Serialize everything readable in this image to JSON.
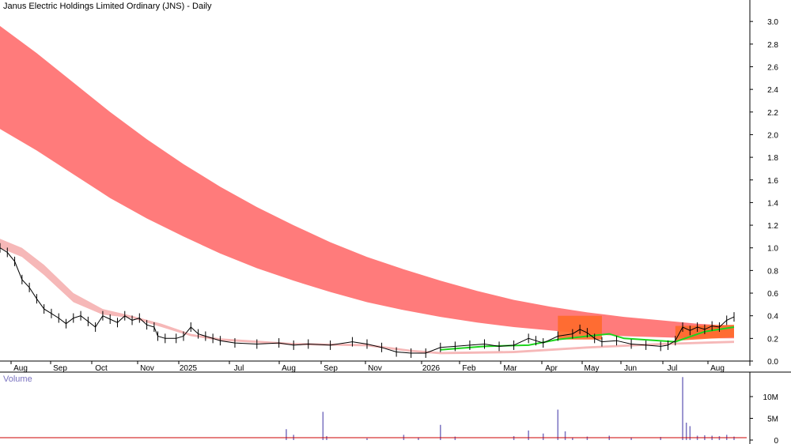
{
  "chart_title": "Janus Electric Holdings Limited Ordinary (JNS) - Daily",
  "volume_label": "Volume",
  "colors": {
    "upper_band": "#ff7b7b",
    "lower_band": "#f6b8b8",
    "highlight": "#ff6a2a",
    "short_ma": "#1ed41e",
    "price": "#000000",
    "volume_bars": "#7a72c0",
    "volume_ma": "#cc0000"
  },
  "chart_data": {
    "type": "line",
    "title": "Janus Electric Holdings Limited Ordinary (JNS) - Daily",
    "x_tick_labels": [
      "Aug",
      "Sep",
      "Oct",
      "Nov",
      "2025",
      "Jul",
      "Aug",
      "Sep",
      "Nov",
      "2026",
      "Feb",
      "Mar",
      "Apr",
      "May",
      "Jun",
      "Jul",
      "Aug"
    ],
    "price_axis": {
      "ticks": [
        "0.0",
        "0.2",
        "0.4",
        "0.6",
        "0.8",
        "1.0",
        "1.2",
        "1.4",
        "1.6",
        "1.8",
        "2.0",
        "2.2",
        "2.4",
        "2.6",
        "2.8",
        "3.0"
      ],
      "ylim": [
        0,
        3.05
      ]
    },
    "volume_axis": {
      "ticks": [
        "0",
        "5M",
        "10M"
      ],
      "ylim": [
        0,
        14000000
      ]
    },
    "grid": false,
    "series": [
      {
        "kind": "upper_band",
        "top": [
          [
            0,
            2.96
          ],
          [
            0.05,
            2.72
          ],
          [
            0.1,
            2.46
          ],
          [
            0.15,
            2.2
          ],
          [
            0.2,
            1.96
          ],
          [
            0.25,
            1.74
          ],
          [
            0.3,
            1.54
          ],
          [
            0.35,
            1.36
          ],
          [
            0.4,
            1.2
          ],
          [
            0.45,
            1.05
          ],
          [
            0.5,
            0.92
          ],
          [
            0.55,
            0.81
          ],
          [
            0.6,
            0.71
          ],
          [
            0.65,
            0.62
          ],
          [
            0.7,
            0.54
          ],
          [
            0.75,
            0.48
          ],
          [
            0.8,
            0.43
          ],
          [
            0.85,
            0.39
          ],
          [
            0.9,
            0.36
          ],
          [
            0.95,
            0.33
          ],
          [
            1,
            0.31
          ]
        ],
        "bottom": [
          [
            0,
            2.05
          ],
          [
            0.05,
            1.86
          ],
          [
            0.1,
            1.65
          ],
          [
            0.15,
            1.44
          ],
          [
            0.2,
            1.26
          ],
          [
            0.25,
            1.1
          ],
          [
            0.3,
            0.95
          ],
          [
            0.35,
            0.82
          ],
          [
            0.4,
            0.71
          ],
          [
            0.45,
            0.61
          ],
          [
            0.5,
            0.52
          ],
          [
            0.55,
            0.45
          ],
          [
            0.6,
            0.39
          ],
          [
            0.65,
            0.34
          ],
          [
            0.7,
            0.3
          ],
          [
            0.75,
            0.27
          ],
          [
            0.8,
            0.24
          ],
          [
            0.85,
            0.22
          ],
          [
            0.9,
            0.21
          ],
          [
            0.95,
            0.2
          ],
          [
            1,
            0.2
          ]
        ]
      },
      {
        "kind": "lower_band",
        "top": [
          [
            0,
            1.08
          ],
          [
            0.03,
            1.0
          ],
          [
            0.06,
            0.85
          ],
          [
            0.1,
            0.6
          ],
          [
            0.14,
            0.46
          ],
          [
            0.18,
            0.4
          ],
          [
            0.22,
            0.33
          ],
          [
            0.26,
            0.24
          ],
          [
            0.3,
            0.2
          ],
          [
            0.4,
            0.16
          ],
          [
            0.5,
            0.15
          ],
          [
            0.56,
            0.1
          ],
          [
            0.6,
            0.08
          ],
          [
            0.7,
            0.09
          ],
          [
            0.8,
            0.13
          ],
          [
            0.9,
            0.16
          ],
          [
            1,
            0.18
          ]
        ],
        "bottom": [
          [
            0,
            1.0
          ],
          [
            0.03,
            0.92
          ],
          [
            0.06,
            0.76
          ],
          [
            0.1,
            0.52
          ],
          [
            0.14,
            0.41
          ],
          [
            0.18,
            0.38
          ],
          [
            0.22,
            0.3
          ],
          [
            0.26,
            0.22
          ],
          [
            0.3,
            0.18
          ],
          [
            0.4,
            0.14
          ],
          [
            0.5,
            0.13
          ],
          [
            0.56,
            0.08
          ],
          [
            0.6,
            0.06
          ],
          [
            0.7,
            0.07
          ],
          [
            0.8,
            0.11
          ],
          [
            0.9,
            0.14
          ],
          [
            1,
            0.16
          ]
        ]
      },
      {
        "kind": "short_ma",
        "points": [
          [
            0.6,
            0.1
          ],
          [
            0.66,
            0.13
          ],
          [
            0.72,
            0.14
          ],
          [
            0.76,
            0.19
          ],
          [
            0.8,
            0.22
          ],
          [
            0.83,
            0.24
          ],
          [
            0.85,
            0.2
          ],
          [
            0.92,
            0.17
          ],
          [
            0.96,
            0.26
          ],
          [
            1,
            0.3
          ]
        ]
      },
      {
        "kind": "price",
        "points": [
          [
            0,
            1.0
          ],
          [
            0.01,
            0.96
          ],
          [
            0.02,
            0.88
          ],
          [
            0.03,
            0.72
          ],
          [
            0.04,
            0.65
          ],
          [
            0.05,
            0.55
          ],
          [
            0.06,
            0.46
          ],
          [
            0.07,
            0.42
          ],
          [
            0.08,
            0.38
          ],
          [
            0.09,
            0.33
          ],
          [
            0.1,
            0.38
          ],
          [
            0.11,
            0.4
          ],
          [
            0.12,
            0.35
          ],
          [
            0.13,
            0.3
          ],
          [
            0.14,
            0.4
          ],
          [
            0.15,
            0.37
          ],
          [
            0.16,
            0.34
          ],
          [
            0.17,
            0.4
          ],
          [
            0.18,
            0.36
          ],
          [
            0.19,
            0.38
          ],
          [
            0.2,
            0.32
          ],
          [
            0.21,
            0.3
          ],
          [
            0.215,
            0.22
          ],
          [
            0.225,
            0.2
          ],
          [
            0.24,
            0.2
          ],
          [
            0.25,
            0.22
          ],
          [
            0.26,
            0.3
          ],
          [
            0.27,
            0.24
          ],
          [
            0.28,
            0.22
          ],
          [
            0.29,
            0.2
          ],
          [
            0.3,
            0.18
          ],
          [
            0.32,
            0.16
          ],
          [
            0.35,
            0.15
          ],
          [
            0.38,
            0.16
          ],
          [
            0.4,
            0.14
          ],
          [
            0.42,
            0.15
          ],
          [
            0.45,
            0.14
          ],
          [
            0.48,
            0.17
          ],
          [
            0.5,
            0.15
          ],
          [
            0.52,
            0.12
          ],
          [
            0.54,
            0.08
          ],
          [
            0.56,
            0.07
          ],
          [
            0.58,
            0.07
          ],
          [
            0.6,
            0.12
          ],
          [
            0.62,
            0.13
          ],
          [
            0.64,
            0.14
          ],
          [
            0.66,
            0.15
          ],
          [
            0.68,
            0.13
          ],
          [
            0.7,
            0.14
          ],
          [
            0.72,
            0.2
          ],
          [
            0.73,
            0.18
          ],
          [
            0.74,
            0.16
          ],
          [
            0.76,
            0.22
          ],
          [
            0.78,
            0.24
          ],
          [
            0.79,
            0.28
          ],
          [
            0.8,
            0.25
          ],
          [
            0.81,
            0.2
          ],
          [
            0.82,
            0.17
          ],
          [
            0.84,
            0.18
          ],
          [
            0.86,
            0.15
          ],
          [
            0.88,
            0.14
          ],
          [
            0.9,
            0.13
          ],
          [
            0.91,
            0.14
          ],
          [
            0.92,
            0.18
          ],
          [
            0.93,
            0.3
          ],
          [
            0.94,
            0.27
          ],
          [
            0.95,
            0.3
          ],
          [
            0.96,
            0.28
          ],
          [
            0.97,
            0.31
          ],
          [
            0.98,
            0.3
          ],
          [
            0.99,
            0.36
          ],
          [
            1,
            0.39
          ]
        ]
      },
      {
        "kind": "volume",
        "bars": [
          [
            0.39,
            2.5
          ],
          [
            0.4,
            1.2
          ],
          [
            0.44,
            6.5
          ],
          [
            0.445,
            0.9
          ],
          [
            0.5,
            0.4
          ],
          [
            0.55,
            1.2
          ],
          [
            0.57,
            0.5
          ],
          [
            0.6,
            3.5
          ],
          [
            0.62,
            0.8
          ],
          [
            0.7,
            0.9
          ],
          [
            0.72,
            2.2
          ],
          [
            0.74,
            1.5
          ],
          [
            0.76,
            7.0
          ],
          [
            0.77,
            2.0
          ],
          [
            0.78,
            0.6
          ],
          [
            0.8,
            0.8
          ],
          [
            0.83,
            1.0
          ],
          [
            0.86,
            0.5
          ],
          [
            0.9,
            0.7
          ],
          [
            0.93,
            14.5
          ],
          [
            0.935,
            4.0
          ],
          [
            0.94,
            3.2
          ],
          [
            0.95,
            1.0
          ],
          [
            0.96,
            1.1
          ],
          [
            0.97,
            1.0
          ],
          [
            0.98,
            0.9
          ],
          [
            0.99,
            1.2
          ],
          [
            1,
            0.8
          ]
        ]
      }
    ],
    "highlight_periods": [
      "Apr-May 2026",
      "Jul-Aug 2026"
    ]
  }
}
